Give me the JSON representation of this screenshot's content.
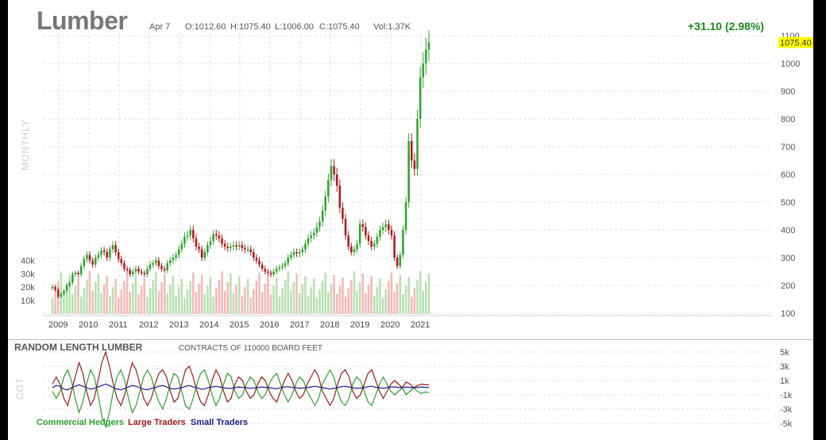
{
  "header": {
    "title": "Lumber",
    "date": "Apr 7",
    "open": "O:1012.60",
    "high": "H:1075.40",
    "low": "L:1006.00",
    "close": "C:1075.40",
    "volume": "Vol:1.37K",
    "change": "+31.10 (2.98%)"
  },
  "side_label_main": "MONTHLY",
  "side_label_cot": "COT",
  "cot": {
    "title": "RANDOM LENGTH LUMBER",
    "subtitle": "CONTRACTS OF 110000 BOARD FEET",
    "legend": [
      {
        "name": "Commercial Hedgers",
        "color": "#2ea32e"
      },
      {
        "name": "Large Traders",
        "color": "#9c1c1c"
      },
      {
        "name": "Small Traders",
        "color": "#1c1c8c"
      }
    ]
  },
  "colors": {
    "up": "#2ea32e",
    "down": "#b01818",
    "vol_up": "#b8e0b0",
    "vol_down": "#f5b8b8",
    "highlight": "#ffff00"
  },
  "chart_data": [
    {
      "type": "candlestick",
      "title": "Lumber",
      "last_value_label": "1075.40",
      "x_ticks": [
        "2009",
        "2010",
        "2011",
        "2012",
        "2013",
        "2014",
        "2015",
        "2016",
        "2017",
        "2018",
        "2019",
        "2020",
        "2021"
      ],
      "y_ticks": [
        100,
        200,
        300,
        400,
        500,
        600,
        700,
        800,
        900,
        1000,
        1100
      ],
      "ylim": [
        100,
        1100
      ],
      "volume_ticks": [
        "10k",
        "20k",
        "30k",
        "40k"
      ],
      "volume_lim": [
        0,
        45000
      ],
      "monthly_close": [
        195,
        185,
        160,
        170,
        180,
        200,
        210,
        240,
        245,
        240,
        270,
        295,
        310,
        290,
        275,
        300,
        310,
        325,
        320,
        300,
        330,
        345,
        320,
        295,
        280,
        260,
        255,
        240,
        250,
        260,
        250,
        245,
        240,
        260,
        275,
        280,
        290,
        270,
        260,
        255,
        280,
        290,
        300,
        310,
        330,
        350,
        375,
        380,
        400,
        370,
        340,
        330,
        300,
        320,
        345,
        360,
        385,
        380,
        370,
        350,
        340,
        335,
        340,
        345,
        340,
        345,
        335,
        330,
        330,
        320,
        300,
        290,
        275,
        260,
        250,
        245,
        240,
        250,
        260,
        265,
        270,
        280,
        300,
        310,
        320,
        315,
        320,
        330,
        350,
        370,
        380,
        390,
        410,
        430,
        470,
        520,
        580,
        630,
        600,
        560,
        480,
        440,
        380,
        340,
        320,
        330,
        350,
        420,
        410,
        380,
        360,
        340,
        350,
        375,
        400,
        410,
        420,
        400,
        380,
        300,
        270,
        310,
        400,
        500,
        720,
        650,
        620,
        800,
        950,
        1000,
        1050,
        1075.4
      ]
    },
    {
      "type": "line",
      "title": "RANDOM LENGTH LUMBER",
      "y_ticks": [
        "5k",
        "3k",
        "1k",
        "-1k",
        "-3k",
        "-5k"
      ],
      "ylim": [
        -6000,
        6000
      ],
      "series": [
        {
          "name": "Commercial Hedgers",
          "values": [
            -500,
            -1500,
            -500,
            1500,
            2500,
            1000,
            -1500,
            -3500,
            -2000,
            500,
            2500,
            1500,
            -1000,
            -4000,
            -5500,
            -3500,
            -500,
            1500,
            2500,
            1000,
            -1500,
            -3500,
            -2500,
            -500,
            1500,
            2500,
            1500,
            -500,
            -2000,
            -3000,
            -1500,
            500,
            2000,
            1500,
            -500,
            -2500,
            -3000,
            -1500,
            500,
            2000,
            2500,
            1000,
            -1000,
            -2500,
            -1500,
            500,
            2000,
            1500,
            -500,
            -1500,
            -1000,
            500,
            1500,
            1000,
            -500,
            -1500,
            -1000,
            500,
            1500,
            2000,
            500,
            -1000,
            -2000,
            -1000,
            500,
            1500,
            1000,
            -500,
            -1500,
            -2500,
            -1500,
            500,
            1500,
            2500,
            1500,
            -500,
            -2000,
            -2500,
            -1500,
            500,
            1500,
            1000,
            -500,
            -2000,
            -2500,
            -1000,
            500,
            1500,
            500,
            -500,
            -1000,
            -500,
            0,
            -1000,
            -500,
            0,
            -500,
            -800,
            -600,
            -700
          ]
        },
        {
          "name": "Large Traders",
          "values": [
            500,
            1500,
            500,
            -1500,
            -2500,
            -500,
            1500,
            3500,
            2000,
            -500,
            -2500,
            -1500,
            1000,
            3500,
            5000,
            3000,
            500,
            -1500,
            -2500,
            -1000,
            1500,
            3500,
            2500,
            500,
            -1500,
            -2500,
            -1500,
            500,
            2000,
            2500,
            1500,
            -500,
            -2000,
            -1500,
            500,
            2500,
            3000,
            1500,
            -500,
            -2000,
            -2500,
            -1000,
            1000,
            2500,
            1500,
            -500,
            -2000,
            -1500,
            500,
            1500,
            1000,
            -500,
            -1500,
            -1000,
            500,
            1500,
            1000,
            -500,
            -1500,
            -2000,
            -500,
            1000,
            2000,
            1000,
            -500,
            -1500,
            -1000,
            500,
            1500,
            2500,
            1500,
            -500,
            -1500,
            -2500,
            -1500,
            500,
            2000,
            2500,
            1500,
            -500,
            -1500,
            -1000,
            500,
            2000,
            2500,
            1000,
            -500,
            -1500,
            -500,
            500,
            1000,
            500,
            0,
            800,
            500,
            0,
            300,
            500,
            400,
            400
          ]
        },
        {
          "name": "Small Traders",
          "values": [
            0,
            300,
            200,
            -200,
            -300,
            0,
            200,
            400,
            200,
            0,
            -200,
            -100,
            100,
            300,
            500,
            300,
            0,
            -200,
            -300,
            -100,
            100,
            300,
            200,
            0,
            -200,
            -300,
            -100,
            0,
            200,
            300,
            100,
            -100,
            -200,
            -100,
            0,
            200,
            300,
            100,
            0,
            -200,
            -200,
            0,
            100,
            200,
            100,
            0,
            -100,
            -100,
            0,
            100,
            50,
            0,
            -100,
            -50,
            0,
            100,
            50,
            0,
            -100,
            -150,
            0,
            100,
            150,
            50,
            0,
            -100,
            -50,
            0,
            100,
            200,
            100,
            0,
            -100,
            -200,
            -100,
            0,
            150,
            200,
            100,
            0,
            -100,
            -50,
            0,
            150,
            200,
            50,
            0,
            -100,
            0,
            100,
            100,
            50,
            0,
            100,
            50,
            0,
            50,
            100,
            50,
            50
          ]
        }
      ]
    }
  ]
}
